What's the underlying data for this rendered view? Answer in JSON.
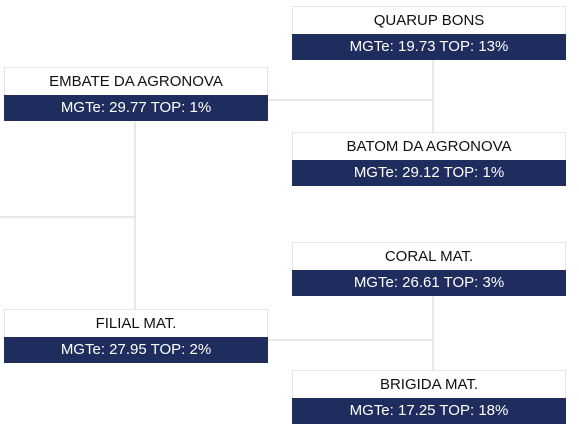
{
  "nodes": {
    "quarup": {
      "name": "QUARUP BONS",
      "stats": "MGTe: 19.73 TOP: 13%"
    },
    "embate": {
      "name": "EMBATE DA AGRONOVA",
      "stats": "MGTe: 29.77 TOP: 1%"
    },
    "batom": {
      "name": "BATOM DA AGRONOVA",
      "stats": "MGTe: 29.12 TOP: 1%"
    },
    "coral": {
      "name": "CORAL MAT.",
      "stats": "MGTe: 26.61 TOP: 3%"
    },
    "filial": {
      "name": "FILIAL MAT.",
      "stats": "MGTe: 27.95 TOP: 2%"
    },
    "brigida": {
      "name": "BRIGIDA MAT.",
      "stats": "MGTe: 17.25 TOP: 18%"
    }
  },
  "colors": {
    "stats_background": "#1f2d5e",
    "stats_text": "#ffffff",
    "connector": "#d9d9d9"
  }
}
